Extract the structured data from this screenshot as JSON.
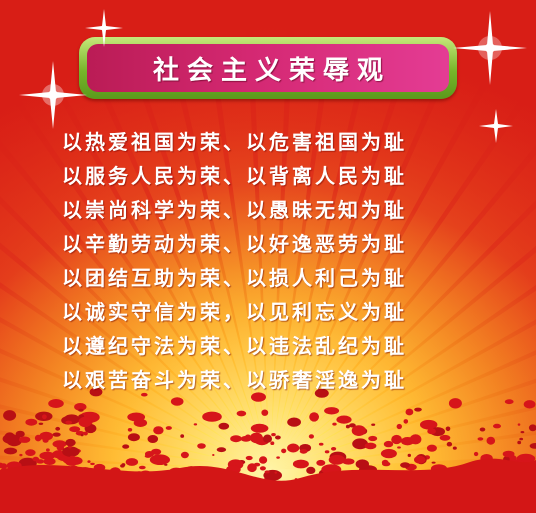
{
  "title": "社会主义荣辱观",
  "lines": [
    "以热爱祖国为荣、以危害祖国为耻",
    "以服务人民为荣、以背离人民为耻",
    "以崇尚科学为荣、以愚昧无知为耻",
    "以辛勤劳动为荣、以好逸恶劳为耻",
    "以团结互助为荣、以损人利己为耻",
    "以诚实守信为荣，以见利忘义为耻",
    "以遵纪守法为荣、以违法乱纪为耻",
    "以艰苦奋斗为荣、以骄奢淫逸为耻"
  ],
  "colors": {
    "background_red": "#d81e16",
    "glow_yellow": "#ffe25a",
    "frame_green": "#77b52a",
    "title_magenta": "#d42872",
    "text_white": "#ffffff"
  },
  "icons": [
    "sparkle-icon",
    "sunburst-rays"
  ]
}
